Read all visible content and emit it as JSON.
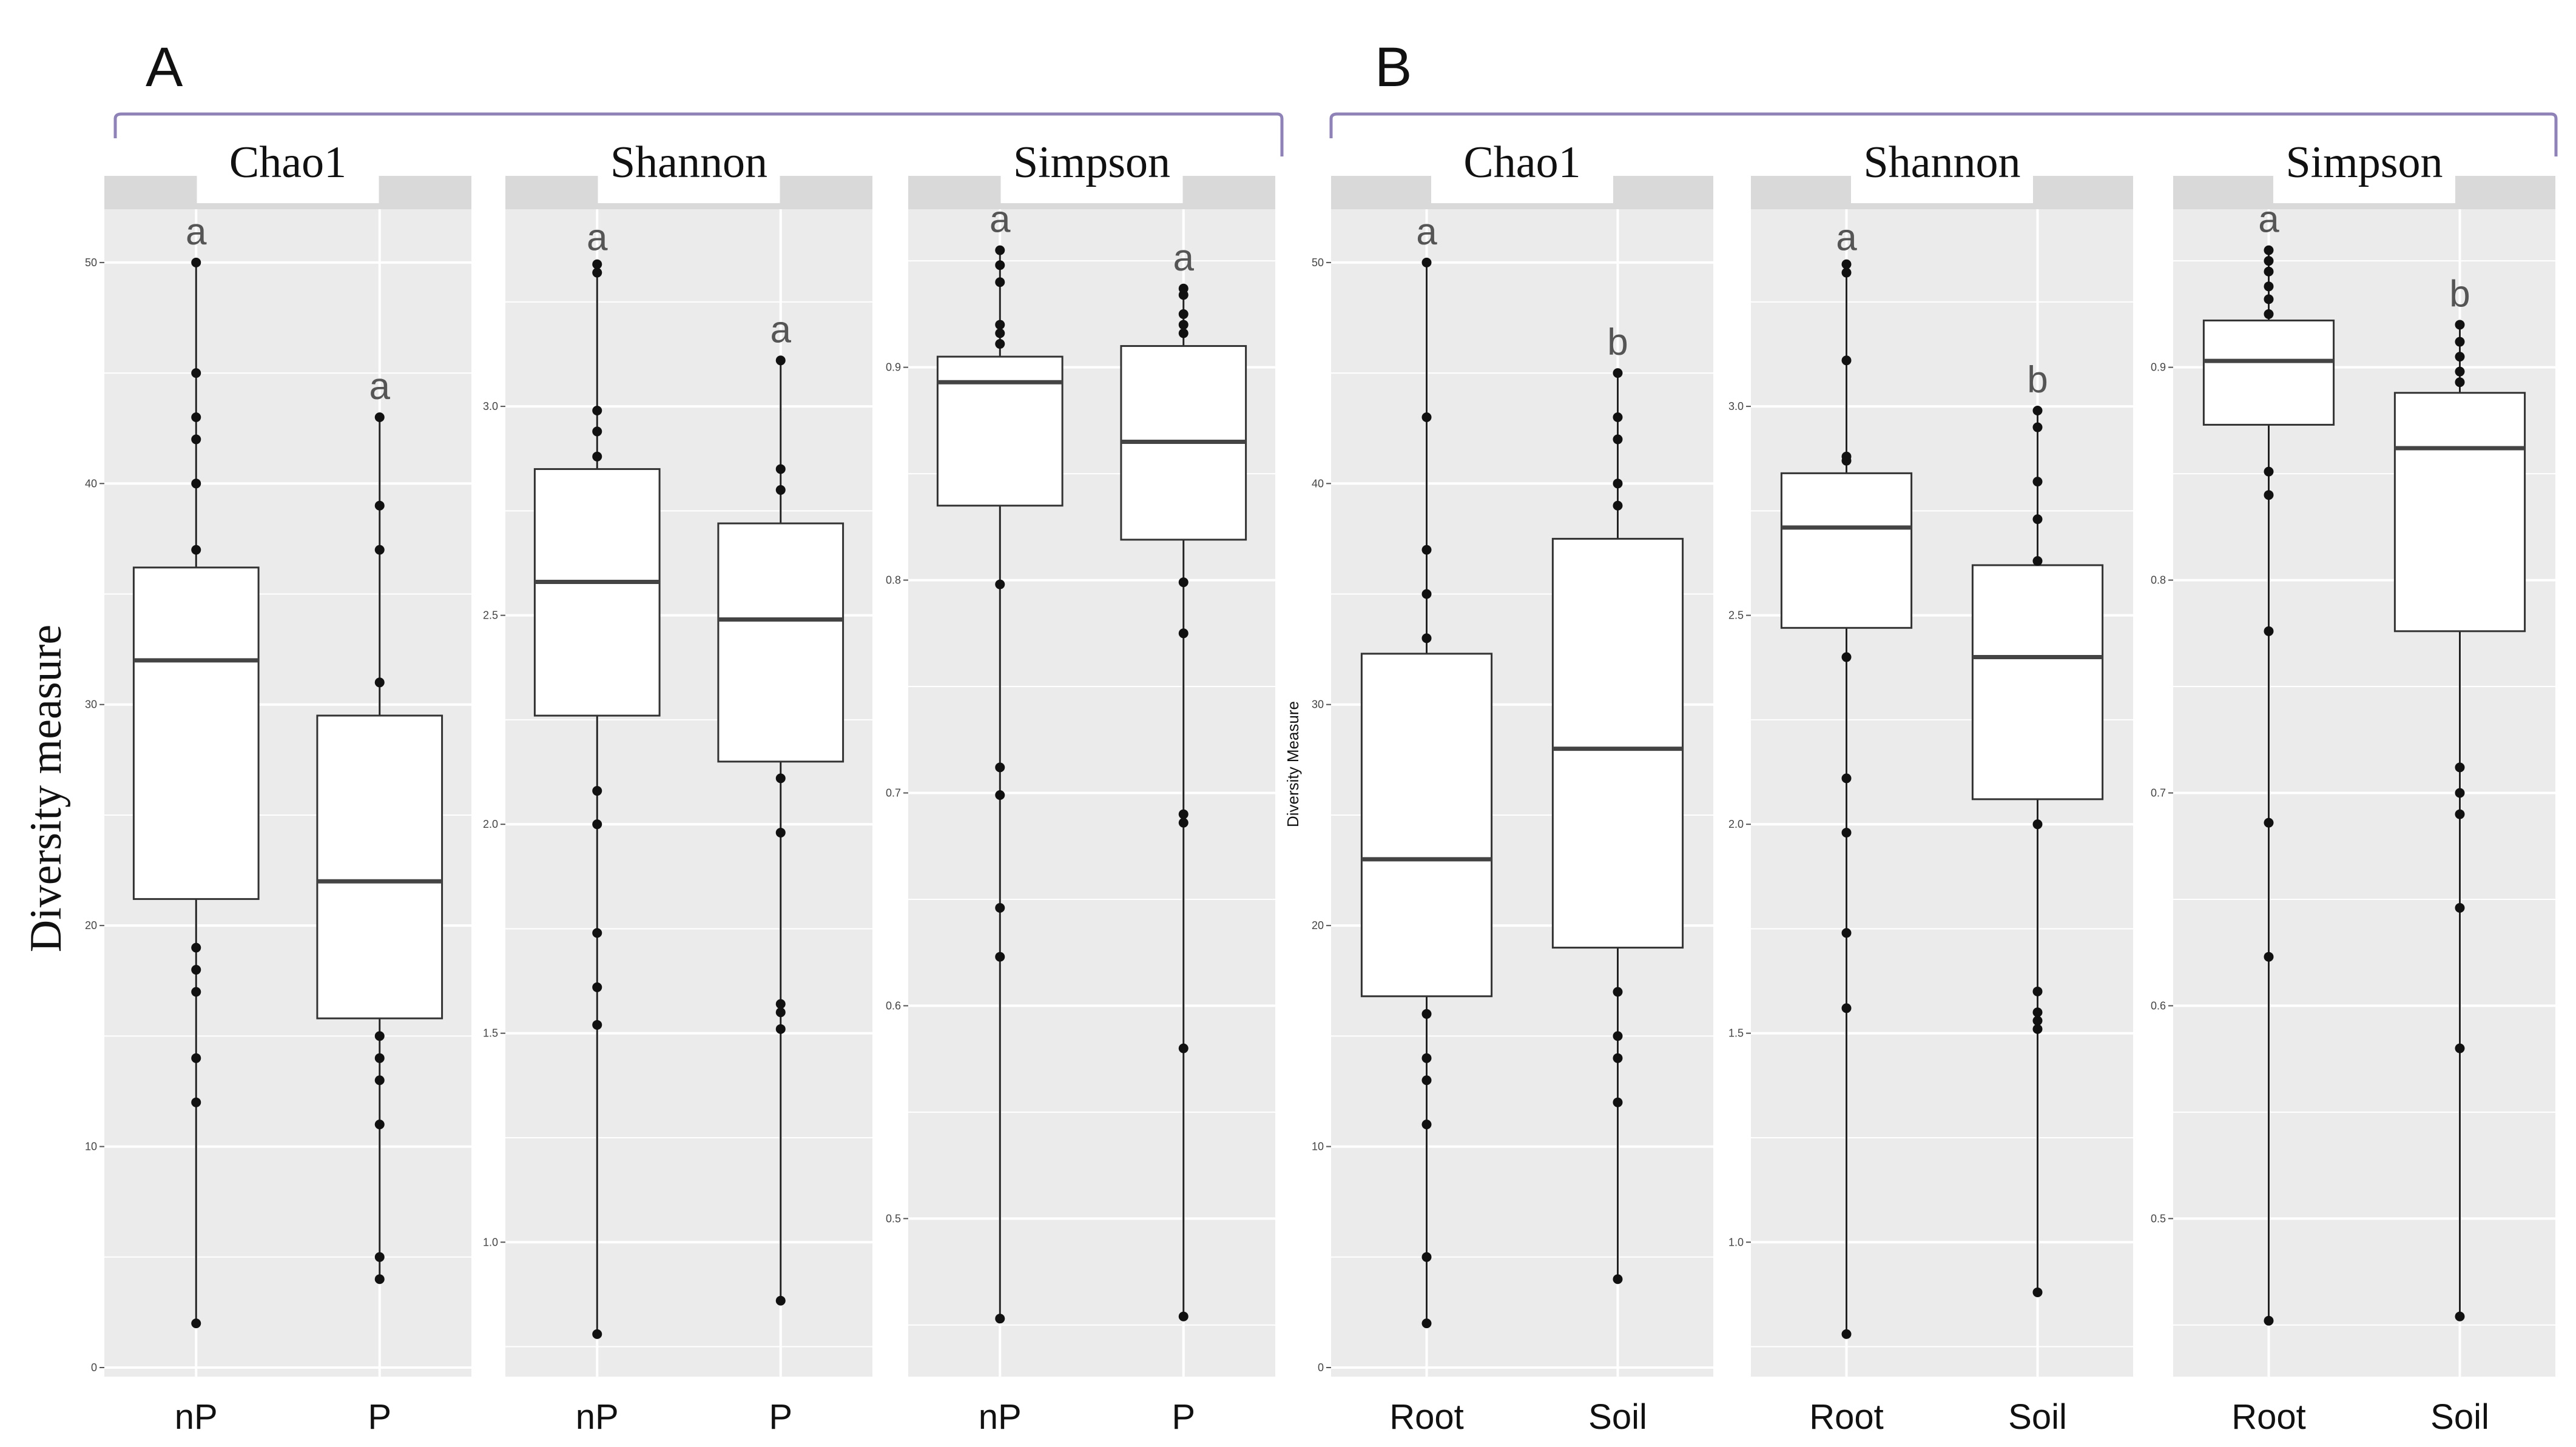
{
  "figure": {
    "panel_labels": [
      "A",
      "B"
    ],
    "ylabel_A": "Diversity measure",
    "ylabel_B": "Diversity Measure"
  },
  "chart_data": [
    {
      "type": "box",
      "panel": "A",
      "facet": "Chao1",
      "categories": [
        "nP",
        "P"
      ],
      "ylim": [
        0,
        52
      ],
      "yticks": [
        0,
        10,
        20,
        30,
        40,
        50
      ],
      "ytick_labels": [
        "0",
        "10",
        "20",
        "30",
        "40",
        "50"
      ],
      "boxes": [
        {
          "q1": 21.2,
          "median": 32,
          "q3": 36.2,
          "whisker_low": 2,
          "whisker_high": 50,
          "outliers": [
            2,
            12,
            14,
            17,
            18,
            19,
            37,
            40,
            42,
            43,
            45,
            50
          ],
          "letter": "a"
        },
        {
          "q1": 15.8,
          "median": 22,
          "q3": 29.5,
          "whisker_low": 4,
          "whisker_high": 43,
          "outliers": [
            4,
            5,
            11,
            13,
            14,
            15,
            31,
            37,
            39,
            43
          ],
          "letter": "a"
        }
      ]
    },
    {
      "type": "box",
      "panel": "A",
      "facet": "Shannon",
      "categories": [
        "nP",
        "P"
      ],
      "ylim": [
        0.7,
        3.45
      ],
      "yticks": [
        1.0,
        1.5,
        2.0,
        2.5,
        3.0
      ],
      "ytick_labels": [
        "1.0",
        "1.5",
        "2.0",
        "2.5",
        "3.0"
      ],
      "boxes": [
        {
          "q1": 2.26,
          "median": 2.58,
          "q3": 2.85,
          "whisker_low": 0.78,
          "whisker_high": 3.33,
          "outliers": [
            0.78,
            1.52,
            1.61,
            1.74,
            2.0,
            2.08,
            2.88,
            2.94,
            2.99,
            3.32,
            3.34
          ],
          "letter": "a"
        },
        {
          "q1": 2.15,
          "median": 2.49,
          "q3": 2.72,
          "whisker_low": 0.86,
          "whisker_high": 3.11,
          "outliers": [
            0.86,
            1.51,
            1.55,
            1.57,
            1.98,
            2.11,
            2.8,
            2.85,
            3.11
          ],
          "letter": "a"
        }
      ]
    },
    {
      "type": "box",
      "panel": "A",
      "facet": "Simpson",
      "categories": [
        "nP",
        "P"
      ],
      "ylim": [
        0.43,
        0.97
      ],
      "yticks": [
        0.5,
        0.6,
        0.7,
        0.8,
        0.9
      ],
      "ytick_labels": [
        "0.5",
        "0.6",
        "0.7",
        "0.8",
        "0.9"
      ],
      "boxes": [
        {
          "q1": 0.835,
          "median": 0.893,
          "q3": 0.905,
          "whisker_low": 0.453,
          "whisker_high": 0.955,
          "outliers": [
            0.453,
            0.623,
            0.646,
            0.699,
            0.712,
            0.798,
            0.911,
            0.916,
            0.92,
            0.94,
            0.948,
            0.955
          ],
          "letter": "a"
        },
        {
          "q1": 0.819,
          "median": 0.865,
          "q3": 0.91,
          "whisker_low": 0.454,
          "whisker_high": 0.937,
          "outliers": [
            0.454,
            0.58,
            0.686,
            0.69,
            0.775,
            0.799,
            0.916,
            0.92,
            0.925,
            0.934,
            0.937
          ],
          "letter": "a"
        }
      ]
    },
    {
      "type": "box",
      "panel": "B",
      "facet": "Chao1",
      "categories": [
        "Root",
        "Soil"
      ],
      "ylim": [
        0,
        52
      ],
      "yticks": [
        0,
        10,
        20,
        30,
        40,
        50
      ],
      "ytick_labels": [
        "0",
        "10",
        "20",
        "30",
        "40",
        "50"
      ],
      "boxes": [
        {
          "q1": 16.8,
          "median": 23,
          "q3": 32.3,
          "whisker_low": 2,
          "whisker_high": 50,
          "outliers": [
            2,
            5,
            11,
            13,
            14,
            16,
            33,
            35,
            37,
            43,
            50
          ],
          "letter": "a"
        },
        {
          "q1": 19,
          "median": 28,
          "q3": 37.5,
          "whisker_low": 4,
          "whisker_high": 45,
          "outliers": [
            4,
            12,
            14,
            15,
            17,
            39,
            40,
            42,
            43,
            45
          ],
          "letter": "b"
        }
      ]
    },
    {
      "type": "box",
      "panel": "B",
      "facet": "Shannon",
      "categories": [
        "Root",
        "Soil"
      ],
      "ylim": [
        0.7,
        3.45
      ],
      "yticks": [
        1.0,
        1.5,
        2.0,
        2.5,
        3.0
      ],
      "ytick_labels": [
        "1.0",
        "1.5",
        "2.0",
        "2.5",
        "3.0"
      ],
      "boxes": [
        {
          "q1": 2.47,
          "median": 2.71,
          "q3": 2.84,
          "whisker_low": 0.78,
          "whisker_high": 3.33,
          "outliers": [
            0.78,
            1.56,
            1.74,
            1.98,
            2.11,
            2.4,
            2.87,
            2.88,
            3.11,
            3.32,
            3.34
          ],
          "letter": "a"
        },
        {
          "q1": 2.06,
          "median": 2.4,
          "q3": 2.62,
          "whisker_low": 0.88,
          "whisker_high": 2.99,
          "outliers": [
            0.88,
            1.51,
            1.53,
            1.55,
            1.6,
            2.0,
            2.63,
            2.73,
            2.82,
            2.95,
            2.99
          ],
          "letter": "b"
        }
      ]
    },
    {
      "type": "box",
      "panel": "B",
      "facet": "Simpson",
      "categories": [
        "Root",
        "Soil"
      ],
      "ylim": [
        0.43,
        0.97
      ],
      "yticks": [
        0.5,
        0.6,
        0.7,
        0.8,
        0.9
      ],
      "ytick_labels": [
        "0.5",
        "0.6",
        "0.7",
        "0.8",
        "0.9"
      ],
      "boxes": [
        {
          "q1": 0.873,
          "median": 0.903,
          "q3": 0.922,
          "whisker_low": 0.452,
          "whisker_high": 0.955,
          "outliers": [
            0.452,
            0.623,
            0.686,
            0.776,
            0.84,
            0.851,
            0.925,
            0.932,
            0.938,
            0.945,
            0.95,
            0.955
          ],
          "letter": "a"
        },
        {
          "q1": 0.776,
          "median": 0.862,
          "q3": 0.888,
          "whisker_low": 0.454,
          "whisker_high": 0.92,
          "outliers": [
            0.454,
            0.58,
            0.646,
            0.69,
            0.7,
            0.712,
            0.893,
            0.898,
            0.905,
            0.912,
            0.92
          ],
          "letter": "b"
        }
      ]
    }
  ]
}
